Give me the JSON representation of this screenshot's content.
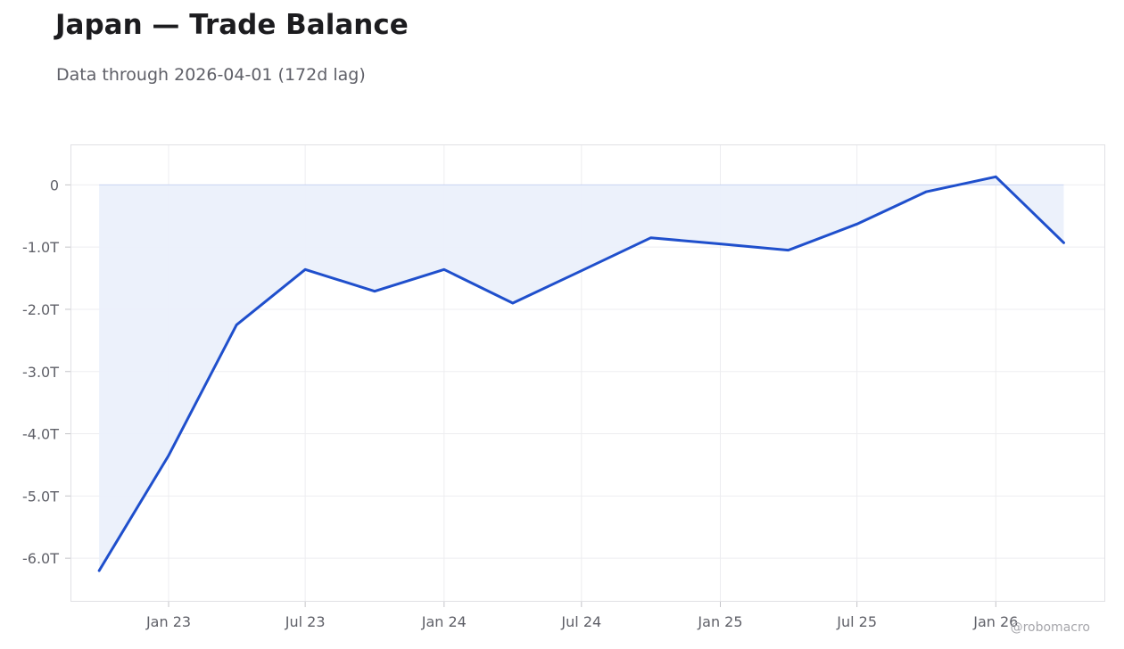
{
  "header": {
    "title": "Japan — Trade Balance",
    "subtitle": "Data through 2026-04-01 (172d lag)"
  },
  "footer": {
    "credit": "@robomacro"
  },
  "colors": {
    "line": "#1f4fcc",
    "area": "#ebf0fb",
    "grid": "#ededf0",
    "frame": "#e0e0e4",
    "text": "#5f6068"
  },
  "chart_data": {
    "type": "area",
    "title": "Japan — Trade Balance",
    "subtitle": "Data through 2026-04-01 (172d lag)",
    "xlabel": "",
    "ylabel": "",
    "x": [
      "2022-10-01",
      "2023-01-01",
      "2023-04-01",
      "2023-07-01",
      "2023-10-01",
      "2024-01-01",
      "2024-04-01",
      "2024-07-01",
      "2024-10-01",
      "2025-01-01",
      "2025-04-01",
      "2025-07-01",
      "2025-10-01",
      "2026-01-01",
      "2026-04-01"
    ],
    "series": [
      {
        "values": [
          -6.2,
          -4.35,
          -2.25,
          -1.36,
          -1.71,
          -1.36,
          -1.9,
          -1.38,
          -0.85,
          -0.95,
          -1.05,
          -0.63,
          -0.11,
          0.13,
          -0.93
        ]
      }
    ],
    "xlim": [
      "2022-08-24",
      "2026-05-26"
    ],
    "ylim": [
      -6.7,
      0.65
    ],
    "y_ticks": [
      0,
      -1,
      -2,
      -3,
      -4,
      -5,
      -6
    ],
    "y_tick_labels": [
      "0",
      "-1.0T",
      "-2.0T",
      "-3.0T",
      "-4.0T",
      "-5.0T",
      "-6.0T"
    ],
    "x_ticks": [
      "2023-01-01",
      "2023-07-01",
      "2024-01-01",
      "2024-07-01",
      "2025-01-01",
      "2025-07-01",
      "2026-01-01"
    ],
    "x_tick_labels": [
      "Jan 23",
      "Jul 23",
      "Jan 24",
      "Jul 24",
      "Jan 25",
      "Jul 25",
      "Jan 26"
    ],
    "grid": true,
    "legend": "none"
  }
}
